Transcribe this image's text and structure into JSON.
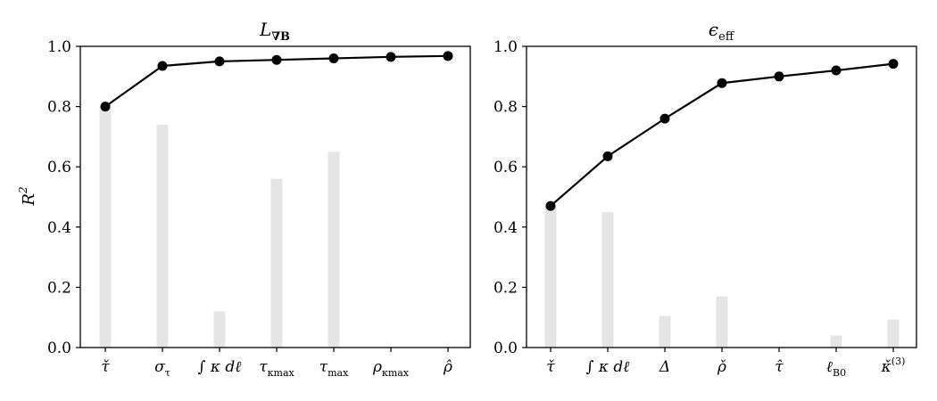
{
  "chart_data": [
    {
      "type": "bar+line",
      "title": "L∇B",
      "ylabel": "R²",
      "ylim": [
        0,
        1.0
      ],
      "yticks": [
        "0.0",
        "0.2",
        "0.4",
        "0.6",
        "0.8",
        "1.0"
      ],
      "categories": [
        "τ̌",
        "στ",
        "∫ κ dℓ",
        "τκmax",
        "τmax",
        "ρκmax",
        "ρ̂"
      ],
      "series": [
        {
          "kind": "bar",
          "values": [
            0.8,
            0.74,
            0.12,
            0.56,
            0.65,
            0.0,
            0.0
          ]
        },
        {
          "kind": "line",
          "values": [
            0.8,
            0.935,
            0.95,
            0.955,
            0.96,
            0.965,
            0.968
          ]
        }
      ]
    },
    {
      "type": "bar+line",
      "title": "ϵeff",
      "ylabel": "",
      "ylim": [
        0,
        1.0
      ],
      "yticks": [
        "0.0",
        "0.2",
        "0.4",
        "0.6",
        "0.8",
        "1.0"
      ],
      "categories": [
        "τ̌",
        "∫ κ dℓ",
        "Δ",
        "ρ̌",
        "τ̂",
        "ℓB0",
        "κ̌(3)"
      ],
      "series": [
        {
          "kind": "bar",
          "values": [
            0.47,
            0.45,
            0.105,
            0.17,
            0.0,
            0.04,
            0.093
          ]
        },
        {
          "kind": "line",
          "values": [
            0.47,
            0.635,
            0.76,
            0.878,
            0.9,
            0.92,
            0.942
          ]
        }
      ]
    }
  ],
  "colors": {
    "bar": "#e5e5e5",
    "line": "#000000",
    "marker": "#000000",
    "axes": "#000000"
  }
}
